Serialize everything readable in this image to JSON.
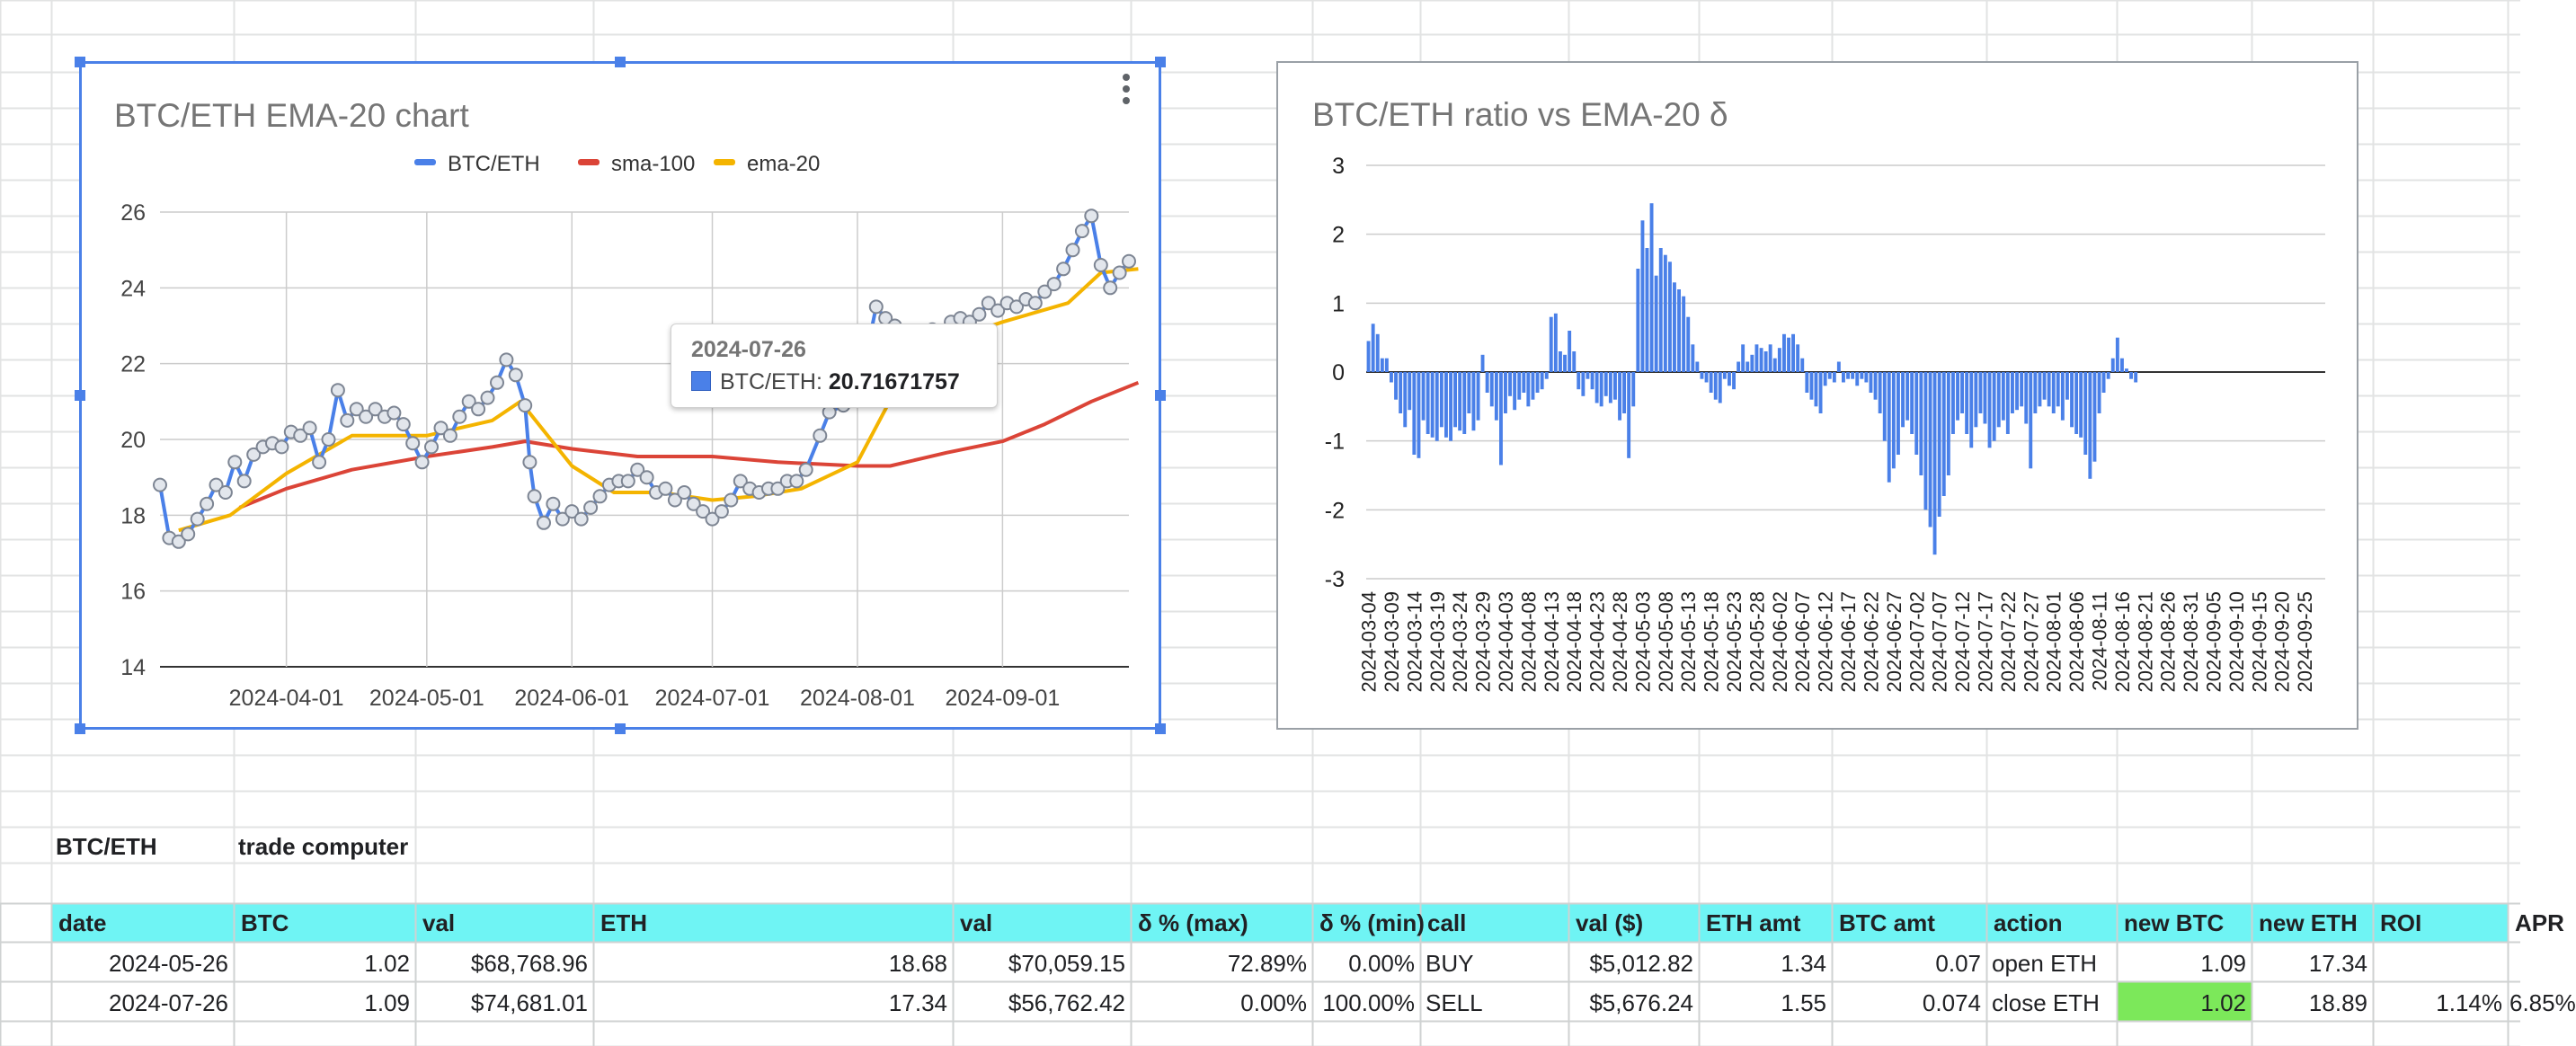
{
  "colors": {
    "btc_eth": "#4a80e8",
    "sma_100": "#db4437",
    "ema_20": "#f4b400",
    "bar": "#4a80e8",
    "header_fill": "#6ff4f4",
    "highlight": "#7ce85a",
    "selection": "#4a80e8"
  },
  "chart_data": [
    {
      "type": "line",
      "title": "BTC/ETH EMA-20 chart",
      "legend_position": "top",
      "xlabel": "",
      "ylabel": "",
      "ylim": [
        14,
        26
      ],
      "yticks": [
        "14",
        "16",
        "18",
        "20",
        "22",
        "24",
        "26"
      ],
      "x_range": [
        "2024-03-05",
        "2024-09-28"
      ],
      "xticks": [
        "2024-04-01",
        "2024-05-01",
        "2024-06-01",
        "2024-07-01",
        "2024-08-01",
        "2024-09-01"
      ],
      "grid": true,
      "series": [
        {
          "name": "BTC/ETH",
          "color": "#4a80e8",
          "markers": true,
          "points": [
            [
              "2024-03-05",
              18.8
            ],
            [
              "2024-03-07",
              17.4
            ],
            [
              "2024-03-09",
              17.3
            ],
            [
              "2024-03-11",
              17.5
            ],
            [
              "2024-03-13",
              17.9
            ],
            [
              "2024-03-15",
              18.3
            ],
            [
              "2024-03-17",
              18.8
            ],
            [
              "2024-03-19",
              18.6
            ],
            [
              "2024-03-21",
              19.4
            ],
            [
              "2024-03-23",
              18.9
            ],
            [
              "2024-03-25",
              19.6
            ],
            [
              "2024-03-27",
              19.8
            ],
            [
              "2024-03-29",
              19.9
            ],
            [
              "2024-03-31",
              19.8
            ],
            [
              "2024-04-02",
              20.2
            ],
            [
              "2024-04-04",
              20.1
            ],
            [
              "2024-04-06",
              20.3
            ],
            [
              "2024-04-08",
              19.4
            ],
            [
              "2024-04-10",
              20.0
            ],
            [
              "2024-04-12",
              21.3
            ],
            [
              "2024-04-14",
              20.5
            ],
            [
              "2024-04-16",
              20.8
            ],
            [
              "2024-04-18",
              20.6
            ],
            [
              "2024-04-20",
              20.8
            ],
            [
              "2024-04-22",
              20.6
            ],
            [
              "2024-04-24",
              20.7
            ],
            [
              "2024-04-26",
              20.4
            ],
            [
              "2024-04-28",
              19.9
            ],
            [
              "2024-04-30",
              19.4
            ],
            [
              "2024-05-02",
              19.8
            ],
            [
              "2024-05-04",
              20.3
            ],
            [
              "2024-05-06",
              20.1
            ],
            [
              "2024-05-08",
              20.6
            ],
            [
              "2024-05-10",
              21.0
            ],
            [
              "2024-05-12",
              20.8
            ],
            [
              "2024-05-14",
              21.1
            ],
            [
              "2024-05-16",
              21.5
            ],
            [
              "2024-05-18",
              22.1
            ],
            [
              "2024-05-20",
              21.7
            ],
            [
              "2024-05-22",
              20.9
            ],
            [
              "2024-05-23",
              19.4
            ],
            [
              "2024-05-24",
              18.5
            ],
            [
              "2024-05-26",
              17.8
            ],
            [
              "2024-05-28",
              18.3
            ],
            [
              "2024-05-30",
              17.9
            ],
            [
              "2024-06-01",
              18.1
            ],
            [
              "2024-06-03",
              17.9
            ],
            [
              "2024-06-05",
              18.2
            ],
            [
              "2024-06-07",
              18.5
            ],
            [
              "2024-06-09",
              18.8
            ],
            [
              "2024-06-11",
              18.9
            ],
            [
              "2024-06-13",
              18.9
            ],
            [
              "2024-06-15",
              19.2
            ],
            [
              "2024-06-17",
              19.0
            ],
            [
              "2024-06-19",
              18.6
            ],
            [
              "2024-06-21",
              18.7
            ],
            [
              "2024-06-23",
              18.4
            ],
            [
              "2024-06-25",
              18.6
            ],
            [
              "2024-06-27",
              18.3
            ],
            [
              "2024-06-29",
              18.1
            ],
            [
              "2024-07-01",
              17.9
            ],
            [
              "2024-07-03",
              18.1
            ],
            [
              "2024-07-05",
              18.4
            ],
            [
              "2024-07-07",
              18.9
            ],
            [
              "2024-07-09",
              18.7
            ],
            [
              "2024-07-11",
              18.6
            ],
            [
              "2024-07-13",
              18.7
            ],
            [
              "2024-07-15",
              18.7
            ],
            [
              "2024-07-17",
              18.9
            ],
            [
              "2024-07-19",
              18.9
            ],
            [
              "2024-07-21",
              19.2
            ],
            [
              "2024-07-24",
              20.1
            ],
            [
              "2024-07-26",
              20.72
            ],
            [
              "2024-07-29",
              20.9
            ],
            [
              "2024-08-01",
              21.1
            ],
            [
              "2024-08-03",
              22.3
            ],
            [
              "2024-08-05",
              23.5
            ],
            [
              "2024-08-07",
              23.2
            ],
            [
              "2024-08-09",
              23.0
            ],
            [
              "2024-08-11",
              22.6
            ],
            [
              "2024-08-13",
              22.4
            ],
            [
              "2024-08-15",
              22.7
            ],
            [
              "2024-08-17",
              22.9
            ],
            [
              "2024-08-19",
              22.8
            ],
            [
              "2024-08-21",
              23.1
            ],
            [
              "2024-08-23",
              23.2
            ],
            [
              "2024-08-25",
              23.1
            ],
            [
              "2024-08-27",
              23.3
            ],
            [
              "2024-08-29",
              23.6
            ],
            [
              "2024-08-31",
              23.4
            ],
            [
              "2024-09-02",
              23.6
            ],
            [
              "2024-09-04",
              23.5
            ],
            [
              "2024-09-06",
              23.7
            ],
            [
              "2024-09-08",
              23.6
            ],
            [
              "2024-09-10",
              23.9
            ],
            [
              "2024-09-12",
              24.1
            ],
            [
              "2024-09-14",
              24.5
            ],
            [
              "2024-09-16",
              25.0
            ],
            [
              "2024-09-18",
              25.5
            ],
            [
              "2024-09-20",
              25.9
            ],
            [
              "2024-09-22",
              24.6
            ],
            [
              "2024-09-24",
              24.0
            ],
            [
              "2024-09-26",
              24.4
            ],
            [
              "2024-09-28",
              24.7
            ]
          ]
        },
        {
          "name": "sma-100",
          "color": "#db4437",
          "markers": false,
          "points": [
            [
              "2024-03-22",
              18.2
            ],
            [
              "2024-04-01",
              18.7
            ],
            [
              "2024-04-15",
              19.2
            ],
            [
              "2024-05-01",
              19.55
            ],
            [
              "2024-05-15",
              19.8
            ],
            [
              "2024-05-22",
              19.95
            ],
            [
              "2024-06-01",
              19.75
            ],
            [
              "2024-06-15",
              19.55
            ],
            [
              "2024-07-01",
              19.55
            ],
            [
              "2024-07-15",
              19.4
            ],
            [
              "2024-08-01",
              19.3
            ],
            [
              "2024-08-08",
              19.3
            ],
            [
              "2024-08-20",
              19.65
            ],
            [
              "2024-09-01",
              19.95
            ],
            [
              "2024-09-10",
              20.4
            ],
            [
              "2024-09-20",
              21.0
            ],
            [
              "2024-09-30",
              21.5
            ]
          ]
        },
        {
          "name": "ema-20",
          "color": "#f4b400",
          "markers": false,
          "points": [
            [
              "2024-03-09",
              17.6
            ],
            [
              "2024-03-20",
              18.0
            ],
            [
              "2024-04-01",
              19.1
            ],
            [
              "2024-04-15",
              20.1
            ],
            [
              "2024-05-01",
              20.1
            ],
            [
              "2024-05-15",
              20.5
            ],
            [
              "2024-05-21",
              21.0
            ],
            [
              "2024-06-01",
              19.3
            ],
            [
              "2024-06-10",
              18.6
            ],
            [
              "2024-06-20",
              18.6
            ],
            [
              "2024-07-01",
              18.4
            ],
            [
              "2024-07-10",
              18.5
            ],
            [
              "2024-07-20",
              18.7
            ],
            [
              "2024-08-01",
              19.4
            ],
            [
              "2024-08-10",
              21.5
            ],
            [
              "2024-08-20",
              22.6
            ],
            [
              "2024-09-01",
              23.1
            ],
            [
              "2024-09-15",
              23.6
            ],
            [
              "2024-09-22",
              24.4
            ],
            [
              "2024-09-30",
              24.5
            ]
          ]
        }
      ],
      "tooltip": {
        "date": "2024-07-26",
        "series": "BTC/ETH",
        "label": "BTC/ETH: ",
        "value": "20.71671757"
      }
    },
    {
      "type": "bar",
      "title": "BTC/ETH ratio vs EMA-20 δ",
      "xlabel": "",
      "ylabel": "",
      "ylim": [
        -3,
        3
      ],
      "yticks": [
        "-3",
        "-2",
        "-1",
        "0",
        "1",
        "2",
        "3"
      ],
      "x_range": [
        "2024-03-04",
        "2024-09-30"
      ],
      "xticks": [
        "2024-03-04",
        "2024-03-09",
        "2024-03-14",
        "2024-03-19",
        "2024-03-24",
        "2024-03-29",
        "2024-04-03",
        "2024-04-08",
        "2024-04-13",
        "2024-04-18",
        "2024-04-23",
        "2024-04-28",
        "2024-05-03",
        "2024-05-08",
        "2024-05-13",
        "2024-05-18",
        "2024-05-23",
        "2024-05-28",
        "2024-06-02",
        "2024-06-07",
        "2024-06-12",
        "2024-06-17",
        "2024-06-22",
        "2024-06-27",
        "2024-07-02",
        "2024-07-07",
        "2024-07-12",
        "2024-07-17",
        "2024-07-22",
        "2024-07-27",
        "2024-08-01",
        "2024-08-06",
        "2024-08-11",
        "2024-08-16",
        "2024-08-21",
        "2024-08-26",
        "2024-08-31",
        "2024-09-05",
        "2024-09-10",
        "2024-09-15",
        "2024-09-20",
        "2024-09-25"
      ],
      "grid": true,
      "series": [
        {
          "name": "",
          "color": "#4a80e8",
          "start_date": "2024-03-04",
          "values": [
            0.45,
            0.7,
            0.55,
            0.2,
            0.2,
            -0.15,
            -0.4,
            -0.6,
            -0.8,
            -0.55,
            -1.2,
            -1.25,
            -0.7,
            -0.9,
            -0.95,
            -1.0,
            -0.8,
            -0.95,
            -1.0,
            -0.8,
            -0.85,
            -0.9,
            -0.6,
            -0.85,
            -0.7,
            0.25,
            -0.3,
            -0.5,
            -0.7,
            -1.35,
            -0.6,
            -0.35,
            -0.55,
            -0.4,
            -0.3,
            -0.5,
            -0.4,
            -0.3,
            -0.25,
            -0.1,
            0.8,
            0.85,
            0.3,
            0.25,
            0.6,
            0.3,
            -0.25,
            -0.35,
            -0.1,
            -0.25,
            -0.45,
            -0.5,
            -0.35,
            -0.45,
            -0.4,
            -0.7,
            -0.6,
            -1.25,
            -0.5,
            1.5,
            2.2,
            1.8,
            2.45,
            1.4,
            1.8,
            1.7,
            1.6,
            1.3,
            1.2,
            1.1,
            0.8,
            0.4,
            0.15,
            -0.1,
            -0.15,
            -0.3,
            -0.4,
            -0.45,
            -0.1,
            -0.2,
            -0.25,
            0.15,
            0.4,
            0.15,
            0.25,
            0.4,
            0.35,
            0.3,
            0.4,
            0.2,
            0.35,
            0.55,
            0.5,
            0.55,
            0.4,
            0.2,
            -0.3,
            -0.4,
            -0.5,
            -0.6,
            -0.2,
            -0.1,
            -0.15,
            0.15,
            -0.15,
            -0.1,
            -0.1,
            -0.2,
            -0.1,
            -0.15,
            -0.3,
            -0.4,
            -0.6,
            -1.0,
            -1.6,
            -1.4,
            -1.2,
            -0.8,
            -0.7,
            -0.9,
            -1.2,
            -1.5,
            -2.0,
            -2.25,
            -2.65,
            -2.1,
            -1.8,
            -1.5,
            -0.9,
            -0.7,
            -0.6,
            -0.9,
            -1.1,
            -0.8,
            -0.6,
            -0.75,
            -1.1,
            -1.0,
            -0.8,
            -0.7,
            -0.9,
            -0.6,
            -0.55,
            -0.5,
            -0.75,
            -1.4,
            -0.6,
            -0.5,
            -0.4,
            -0.5,
            -0.6,
            -0.5,
            -0.7,
            -0.4,
            -0.8,
            -0.9,
            -0.95,
            -1.2,
            -1.55,
            -1.3,
            -0.6,
            -0.3,
            -0.1,
            0.2,
            0.5,
            0.2,
            0.05,
            -0.1,
            -0.15
          ]
        }
      ]
    }
  ],
  "sheet": {
    "labels": {
      "pair": "BTC/ETH",
      "tool": "trade computer"
    },
    "headers": [
      "date",
      "BTC",
      "val",
      "ETH",
      "val",
      "δ % (max)",
      "δ % (min)",
      "call",
      "val ($)",
      "ETH amt",
      "BTC amt",
      "action",
      "new BTC",
      "new ETH",
      "ROI",
      "APR"
    ],
    "rows": [
      [
        "2024-05-26",
        "1.02",
        "$68,768.96",
        "18.68",
        "$70,059.15",
        "72.89%",
        "0.00%",
        "BUY",
        "$5,012.82",
        "1.34",
        "0.07",
        "open ETH",
        "1.09",
        "17.34",
        "",
        ""
      ],
      [
        "2024-07-26",
        "1.09",
        "$74,681.01",
        "17.34",
        "$56,762.42",
        "0.00%",
        "100.00%",
        "SELL",
        "$5,676.24",
        "1.55",
        "0.074",
        "close ETH",
        "1.02",
        "18.89",
        "1.14%",
        "6.85%"
      ]
    ]
  }
}
